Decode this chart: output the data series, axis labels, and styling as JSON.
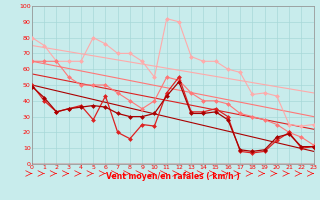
{
  "xlabel": "Vent moyen/en rafales ( km/h )",
  "xlim": [
    0,
    23
  ],
  "ylim": [
    0,
    100
  ],
  "yticks": [
    0,
    10,
    20,
    30,
    40,
    50,
    60,
    70,
    80,
    90,
    100
  ],
  "xticks": [
    0,
    1,
    2,
    3,
    4,
    5,
    6,
    7,
    8,
    9,
    10,
    11,
    12,
    13,
    14,
    15,
    16,
    17,
    18,
    19,
    20,
    21,
    22,
    23
  ],
  "bg_color": "#c8ecec",
  "grid_color": "#a8d8d8",
  "color_light": "#ffaaaa",
  "color_mid": "#ff7777",
  "color_dark": "#dd2222",
  "color_darkest": "#aa0000",
  "line1_y": [
    80,
    75,
    65,
    65,
    65,
    80,
    76,
    70,
    70,
    65,
    55,
    92,
    90,
    68,
    65,
    65,
    60,
    58,
    44,
    45,
    43,
    25,
    24,
    25
  ],
  "line2_y": [
    65,
    65,
    65,
    55,
    50,
    50,
    50,
    45,
    40,
    35,
    40,
    55,
    53,
    45,
    40,
    40,
    38,
    32,
    30,
    28,
    25,
    20,
    17,
    12
  ],
  "line4_y": [
    50,
    40,
    33,
    35,
    37,
    28,
    43,
    20,
    16,
    25,
    24,
    45,
    55,
    33,
    33,
    35,
    30,
    8,
    7,
    8,
    15,
    20,
    10,
    11
  ],
  "line5_y": [
    49,
    42,
    33,
    35,
    36,
    37,
    36,
    32,
    30,
    30,
    32,
    43,
    52,
    32,
    32,
    33,
    28,
    9,
    8,
    9,
    17,
    19,
    11,
    11
  ],
  "trend1_x": [
    0,
    23
  ],
  "trend1_y": [
    75,
    45
  ],
  "trend2_x": [
    0,
    23
  ],
  "trend2_y": [
    65,
    30
  ],
  "trend3_x": [
    0,
    23
  ],
  "trend3_y": [
    57,
    22
  ],
  "trend4_x": [
    0,
    23
  ],
  "trend4_y": [
    50,
    8
  ]
}
